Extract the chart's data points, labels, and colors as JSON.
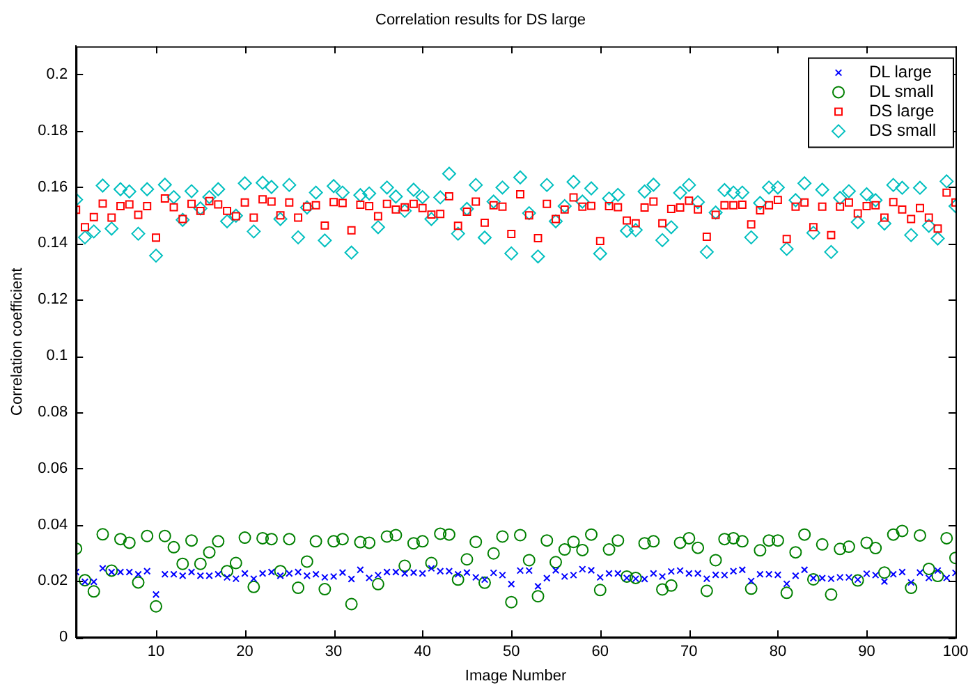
{
  "chart_data": {
    "type": "scatter",
    "title": "Correlation results for DS large",
    "xlabel": "Image Number",
    "ylabel": "Correlation coefficient",
    "x": [
      1,
      2,
      3,
      4,
      5,
      6,
      7,
      8,
      9,
      10,
      11,
      12,
      13,
      14,
      15,
      16,
      17,
      18,
      19,
      20,
      21,
      22,
      23,
      24,
      25,
      26,
      27,
      28,
      29,
      30,
      31,
      32,
      33,
      34,
      35,
      36,
      37,
      38,
      39,
      40,
      41,
      42,
      43,
      44,
      45,
      46,
      47,
      48,
      49,
      50,
      51,
      52,
      53,
      54,
      55,
      56,
      57,
      58,
      59,
      60,
      61,
      62,
      63,
      64,
      65,
      66,
      67,
      68,
      69,
      70,
      71,
      72,
      73,
      74,
      75,
      76,
      77,
      78,
      79,
      80,
      81,
      82,
      83,
      84,
      85,
      86,
      87,
      88,
      89,
      90,
      91,
      92,
      93,
      94,
      95,
      96,
      97,
      98,
      99,
      100
    ],
    "series": [
      {
        "name": "DL large",
        "color": "#0000ff",
        "marker": "cross",
        "values": [
          0.0232,
          0.0197,
          0.0197,
          0.0245,
          0.0232,
          0.0232,
          0.0232,
          0.0224,
          0.0235,
          0.0152,
          0.0224,
          0.0224,
          0.0219,
          0.0232,
          0.0219,
          0.0219,
          0.0224,
          0.0213,
          0.0208,
          0.0227,
          0.0208,
          0.0227,
          0.0232,
          0.0219,
          0.0227,
          0.0232,
          0.0219,
          0.0224,
          0.0213,
          0.0216,
          0.023,
          0.0207,
          0.024,
          0.0211,
          0.0221,
          0.0232,
          0.0232,
          0.0227,
          0.023,
          0.0227,
          0.0245,
          0.0235,
          0.0235,
          0.0224,
          0.023,
          0.0213,
          0.0205,
          0.0229,
          0.0221,
          0.0189,
          0.0237,
          0.0237,
          0.0181,
          0.021,
          0.0238,
          0.0216,
          0.0221,
          0.0242,
          0.0238,
          0.0213,
          0.0227,
          0.0227,
          0.0211,
          0.0208,
          0.0207,
          0.0227,
          0.0216,
          0.0234,
          0.0237,
          0.0227,
          0.0227,
          0.0208,
          0.0222,
          0.0221,
          0.0235,
          0.024,
          0.02,
          0.0224,
          0.0224,
          0.0222,
          0.019,
          0.0219,
          0.024,
          0.021,
          0.021,
          0.0208,
          0.0213,
          0.0213,
          0.0205,
          0.0226,
          0.0221,
          0.0198,
          0.0224,
          0.0232,
          0.0195,
          0.023,
          0.0211,
          0.0237,
          0.0211,
          0.0229
        ]
      },
      {
        "name": "DL small",
        "color": "#008000",
        "marker": "circle",
        "values": [
          0.0315,
          0.0203,
          0.0163,
          0.0366,
          0.0237,
          0.0349,
          0.0336,
          0.0195,
          0.036,
          0.011,
          0.036,
          0.032,
          0.0261,
          0.0344,
          0.0261,
          0.0302,
          0.0341,
          0.0235,
          0.0264,
          0.0354,
          0.0179,
          0.0352,
          0.0349,
          0.0235,
          0.0349,
          0.0176,
          0.0269,
          0.0341,
          0.0171,
          0.0341,
          0.0349,
          0.0118,
          0.0338,
          0.0336,
          0.0189,
          0.0358,
          0.0363,
          0.0254,
          0.0334,
          0.0341,
          0.0264,
          0.0368,
          0.0365,
          0.0205,
          0.0277,
          0.0339,
          0.0194,
          0.0298,
          0.0358,
          0.0125,
          0.0363,
          0.0274,
          0.0146,
          0.0344,
          0.0267,
          0.0312,
          0.0339,
          0.031,
          0.0365,
          0.0168,
          0.0312,
          0.0344,
          0.0216,
          0.0211,
          0.0334,
          0.0341,
          0.017,
          0.0184,
          0.0336,
          0.0352,
          0.0318,
          0.0165,
          0.0274,
          0.0349,
          0.0352,
          0.0341,
          0.0173,
          0.0309,
          0.0344,
          0.0344,
          0.0158,
          0.0302,
          0.0365,
          0.0206,
          0.033,
          0.0152,
          0.0314,
          0.0322,
          0.0202,
          0.0336,
          0.0317,
          0.023,
          0.0365,
          0.0378,
          0.0176,
          0.0362,
          0.0243,
          0.0218,
          0.0352,
          0.0282
        ]
      },
      {
        "name": "DS large",
        "color": "#ff0000",
        "marker": "square",
        "values": [
          0.1519,
          0.1457,
          0.1493,
          0.1541,
          0.1491,
          0.1532,
          0.1538,
          0.1501,
          0.1532,
          0.142,
          0.1559,
          0.1528,
          0.1486,
          0.154,
          0.1515,
          0.155,
          0.1538,
          0.1515,
          0.1496,
          0.1545,
          0.1491,
          0.1556,
          0.1548,
          0.1499,
          0.1545,
          0.1491,
          0.153,
          0.1535,
          0.1463,
          0.1546,
          0.1543,
          0.1446,
          0.1537,
          0.1532,
          0.1496,
          0.154,
          0.152,
          0.1528,
          0.154,
          0.1525,
          0.1502,
          0.1504,
          0.1567,
          0.1462,
          0.1512,
          0.1548,
          0.1473,
          0.1535,
          0.153,
          0.1433,
          0.1574,
          0.1499,
          0.1418,
          0.154,
          0.1486,
          0.152,
          0.1563,
          0.153,
          0.1533,
          0.1408,
          0.1532,
          0.1528,
          0.1481,
          0.1471,
          0.1527,
          0.1548,
          0.1471,
          0.1522,
          0.1527,
          0.1551,
          0.152,
          0.1423,
          0.1501,
          0.1535,
          0.1535,
          0.1537,
          0.1467,
          0.1517,
          0.1535,
          0.1554,
          0.1415,
          0.153,
          0.1545,
          0.1457,
          0.153,
          0.1429,
          0.153,
          0.1545,
          0.1506,
          0.1532,
          0.1535,
          0.1491,
          0.1546,
          0.152,
          0.1486,
          0.1525,
          0.1491,
          0.1452,
          0.158,
          0.1545
        ]
      },
      {
        "name": "DS small",
        "color": "#00bfbf",
        "marker": "diamond",
        "values": [
          0.1555,
          0.1421,
          0.1442,
          0.1605,
          0.1452,
          0.1592,
          0.1584,
          0.1434,
          0.1592,
          0.1356,
          0.1608,
          0.1564,
          0.1483,
          0.1585,
          0.1524,
          0.1564,
          0.1592,
          0.1478,
          0.1498,
          0.1613,
          0.1442,
          0.1615,
          0.16,
          0.1486,
          0.1607,
          0.1421,
          0.1527,
          0.158,
          0.141,
          0.1603,
          0.158,
          0.1367,
          0.1571,
          0.1577,
          0.1457,
          0.1598,
          0.1566,
          0.1515,
          0.159,
          0.1564,
          0.1486,
          0.1563,
          0.1647,
          0.1434,
          0.1522,
          0.1607,
          0.142,
          0.1548,
          0.1598,
          0.1364,
          0.1634,
          0.1507,
          0.1353,
          0.1607,
          0.1478,
          0.1532,
          0.1618,
          0.1548,
          0.1595,
          0.1363,
          0.1559,
          0.1572,
          0.1444,
          0.1447,
          0.1584,
          0.1608,
          0.1411,
          0.1457,
          0.1579,
          0.1607,
          0.1546,
          0.1369,
          0.1509,
          0.1589,
          0.158,
          0.158,
          0.1421,
          0.1543,
          0.1598,
          0.1598,
          0.138,
          0.1553,
          0.1613,
          0.1437,
          0.159,
          0.1369,
          0.1561,
          0.1585,
          0.1475,
          0.1574,
          0.1553,
          0.147,
          0.1607,
          0.1597,
          0.1429,
          0.1597,
          0.1462,
          0.1417,
          0.162,
          0.1532
        ]
      }
    ],
    "xlim": [
      1,
      100
    ],
    "xticks": [
      10,
      20,
      30,
      40,
      50,
      60,
      70,
      80,
      90,
      100
    ],
    "ylim": [
      0,
      0.21
    ],
    "yticks": [
      0,
      0.02,
      0.04,
      0.06,
      0.08,
      0.1,
      0.12,
      0.14,
      0.16,
      0.18,
      0.2
    ],
    "grid": false,
    "legend": "top right"
  }
}
